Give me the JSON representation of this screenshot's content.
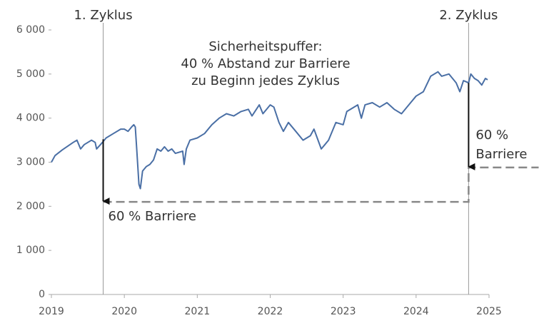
{
  "chart_data": {
    "type": "line",
    "xlim": [
      2019,
      2025
    ],
    "xticks": [
      2019,
      2020,
      2021,
      2022,
      2023,
      2024,
      2025
    ],
    "ylim": [
      0,
      6000
    ],
    "yticks": [
      {
        "value": 0,
        "label": "0"
      },
      {
        "value": 1000,
        "label": "1 000"
      },
      {
        "value": 2000,
        "label": "2 000"
      },
      {
        "value": 3000,
        "label": "3 000"
      },
      {
        "value": 4000,
        "label": "4 000"
      },
      {
        "value": 5000,
        "label": "5 000"
      },
      {
        "value": 6000,
        "label": "6 000"
      }
    ],
    "series": [
      {
        "color": "#4a6fa5",
        "x": [
          2019.0,
          2019.05,
          2019.15,
          2019.3,
          2019.35,
          2019.4,
          2019.45,
          2019.55,
          2019.6,
          2019.62,
          2019.7,
          2019.75,
          2019.85,
          2019.95,
          2020.0,
          2020.05,
          2020.1,
          2020.13,
          2020.15,
          2020.17,
          2020.2,
          2020.22,
          2020.25,
          2020.3,
          2020.35,
          2020.4,
          2020.45,
          2020.5,
          2020.55,
          2020.6,
          2020.65,
          2020.7,
          2020.8,
          2020.82,
          2020.85,
          2020.9,
          2021.0,
          2021.1,
          2021.2,
          2021.3,
          2021.4,
          2021.5,
          2021.6,
          2021.7,
          2021.75,
          2021.85,
          2021.9,
          2022.0,
          2022.05,
          2022.12,
          2022.18,
          2022.25,
          2022.35,
          2022.45,
          2022.55,
          2022.6,
          2022.7,
          2022.75,
          2022.8,
          2022.9,
          2023.0,
          2023.05,
          2023.2,
          2023.25,
          2023.3,
          2023.4,
          2023.5,
          2023.6,
          2023.7,
          2023.8,
          2023.9,
          2024.0,
          2024.1,
          2024.2,
          2024.3,
          2024.35,
          2024.45,
          2024.55,
          2024.6,
          2024.65,
          2024.72,
          2024.75,
          2024.8,
          2024.85,
          2024.9,
          2024.95,
          2024.98
        ],
        "values": [
          3000,
          3150,
          3280,
          3450,
          3500,
          3300,
          3400,
          3500,
          3450,
          3300,
          3450,
          3550,
          3650,
          3750,
          3750,
          3700,
          3800,
          3850,
          3800,
          3300,
          2500,
          2400,
          2800,
          2900,
          2950,
          3050,
          3300,
          3250,
          3350,
          3250,
          3300,
          3200,
          3250,
          2950,
          3300,
          3500,
          3550,
          3650,
          3850,
          4000,
          4100,
          4050,
          4150,
          4200,
          4050,
          4300,
          4100,
          4300,
          4250,
          3900,
          3700,
          3900,
          3700,
          3500,
          3600,
          3750,
          3300,
          3400,
          3500,
          3900,
          3850,
          4150,
          4300,
          4000,
          4300,
          4350,
          4250,
          4350,
          4200,
          4100,
          4300,
          4500,
          4600,
          4950,
          5050,
          4950,
          5000,
          4800,
          4600,
          4850,
          4800,
          5000,
          4900,
          4850,
          4750,
          4900,
          4870
        ]
      }
    ],
    "cycles": [
      {
        "label": "1. Zyklus",
        "x": 2019.71,
        "start_value": 3520,
        "barrier": 2100,
        "barrier_label": [
          "60 % Barriere"
        ]
      },
      {
        "label": "2. Zyklus",
        "x": 2024.72,
        "start_value": 4800,
        "barrier": 2880,
        "barrier_label": [
          "60 %",
          "Barriere"
        ]
      }
    ],
    "barrier_end_x": 2025.68,
    "note": [
      "Sicherheitspuffer:",
      "40 % Abstand zur Barriere",
      "zu Beginn jedes Zyklus"
    ]
  }
}
